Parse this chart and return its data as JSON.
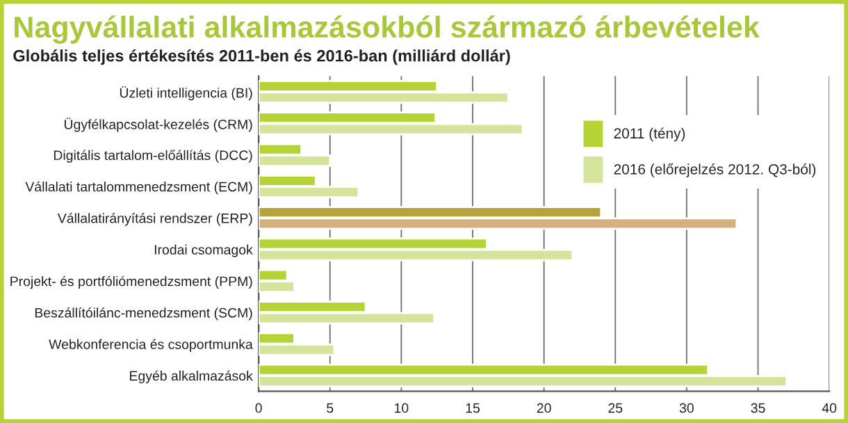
{
  "chart_data": {
    "type": "bar",
    "orientation": "horizontal",
    "title": "Nagyvállalati alkalmazásokból származó árbevételek",
    "subtitle": "Globális teljes értékesítés 2011-ben és 2016-ban (milliárd dollár)",
    "categories": [
      "Üzleti intelligencia (BI)",
      "Ügyfélkapcsolat-kezelés (CRM)",
      "Digitális tartalom-előállítás (DCC)",
      "Vállalati tartalommenedzsment (ECM)",
      "Vállalatirányítási rendszer (ERP)",
      "Irodai csomagok",
      "Projekt- és portfóliómenedzsment (PPM)",
      "Beszállítóilánc-menedzsment (SCM)",
      "Webkonferencia és csoportmunka",
      "Egyéb alkalmazások"
    ],
    "series": [
      {
        "name": "2011 (tény)",
        "color": "#b5d334",
        "colors": [
          "#b5d334",
          "#b5d334",
          "#b5d334",
          "#b5d334",
          "#b8a23c",
          "#b5d334",
          "#b5d334",
          "#b5d334",
          "#b5d334",
          "#b5d334"
        ],
        "values": [
          12.5,
          12.4,
          3,
          4,
          24,
          16,
          2,
          7.5,
          2.5,
          31.5
        ]
      },
      {
        "name": "2016 (előrejelzés 2012. Q3-ból)",
        "color": "#d4e49a",
        "colors": [
          "#d4e49a",
          "#d4e49a",
          "#d4e49a",
          "#d4e49a",
          "#d4b07f",
          "#d4e49a",
          "#d4e49a",
          "#d4e49a",
          "#d4e49a",
          "#d4e49a"
        ],
        "values": [
          17.5,
          18.5,
          5,
          7,
          33.5,
          22,
          2.5,
          12.3,
          5.3,
          37
        ]
      }
    ],
    "xlim": [
      0,
      40
    ],
    "xticks": [
      0,
      5,
      10,
      15,
      20,
      25,
      30,
      35,
      40
    ],
    "grid": "x",
    "legend": "right"
  }
}
